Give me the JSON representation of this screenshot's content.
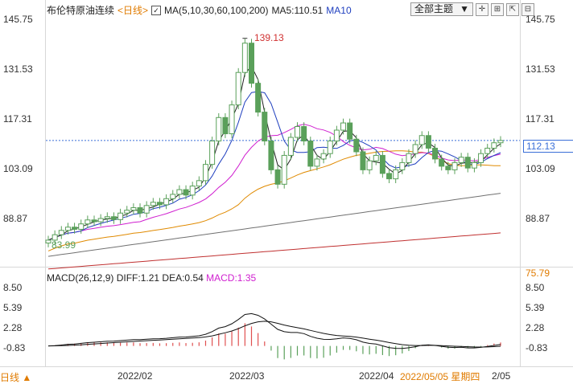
{
  "header": {
    "title": "布伦特原油连续",
    "period": "<日线>",
    "ma_label": "MA(5,10,30,60,100,200)",
    "ma5": "MA5:110.51",
    "ma10": "MA10",
    "theme": "全部主题",
    "theme_arrow": "▼"
  },
  "price_axis": {
    "left": [
      "145.75",
      "131.53",
      "117.31",
      "103.09",
      "88.87"
    ],
    "right": [
      "145.75",
      "131.53",
      "117.31",
      "103.09",
      "88.87",
      "75.79"
    ],
    "current_price": "112.13",
    "high_label": "139.13",
    "low_label": "83.99"
  },
  "macd": {
    "label": "MACD(26,12,9)",
    "diff": "DIFF:1.21",
    "dea": "DEA:0.54",
    "macd": "MACD:1.35",
    "axis_left": [
      "8.50",
      "5.39",
      "2.28",
      "-0.83"
    ],
    "axis_right": [
      "8.50",
      "5.39",
      "2.28",
      "-0.83"
    ]
  },
  "x_axis": {
    "labels": [
      "2022/02",
      "2022/03",
      "2022/04"
    ],
    "cursor_date": "2022/05/05 星期四",
    "tail": "2/05"
  },
  "footer": {
    "period_button": "日线 ▲"
  },
  "colors": {
    "up": "#5aa05a",
    "down": "#5aa05a",
    "macd_up": "#e05050",
    "macd_down": "#5aa05a",
    "ma10": "#1f3fbf",
    "ma30": "#d020d0",
    "ma60": "#e08a00",
    "ma100": "#707070",
    "ma200": "#c03030"
  },
  "chart_data": {
    "type": "candlestick",
    "title": "布伦特原油连续",
    "ylim": [
      75.79,
      145.75
    ],
    "ohlc_close": [
      84.5,
      86.0,
      87.2,
      88.1,
      87.5,
      89.0,
      90.1,
      89.6,
      90.5,
      91.0,
      90.2,
      92.0,
      92.8,
      93.5,
      92.0,
      94.1,
      95.0,
      94.3,
      96.0,
      97.2,
      98.5,
      97.0,
      99.5,
      101.0,
      105.5,
      112.0,
      118.5,
      114.0,
      122.0,
      131.0,
      139.13,
      128.0,
      120.0,
      112.0,
      104.0,
      100.0,
      108.0,
      113.0,
      116.0,
      112.0,
      105.0,
      107.0,
      108.5,
      112.0,
      115.0,
      117.0,
      112.5,
      109.0,
      104.0,
      106.5,
      108.0,
      103.0,
      101.5,
      104.0,
      106.0,
      108.5,
      111.0,
      113.5,
      110.0,
      107.0,
      105.0,
      104.0,
      106.0,
      107.5,
      104.5,
      106.0,
      108.5,
      110.0,
      111.5,
      112.13
    ]
  }
}
